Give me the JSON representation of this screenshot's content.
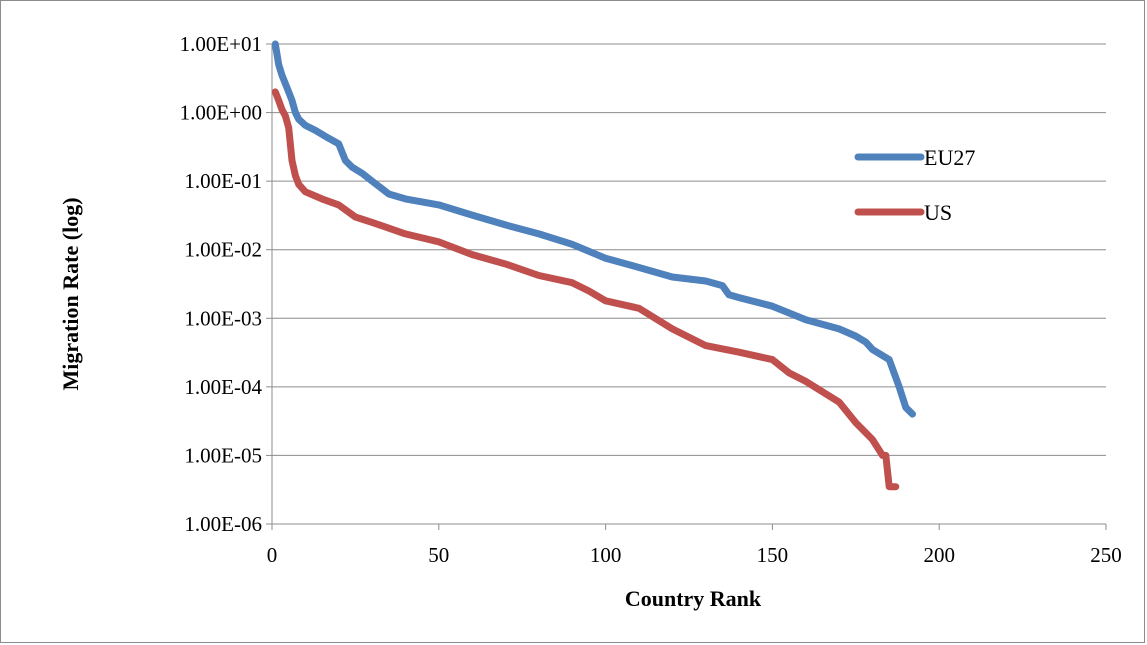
{
  "chart_data": {
    "type": "line",
    "xlabel": "Country Rank",
    "ylabel": "Migration Rate (log)",
    "y_scale": "log",
    "xlim": [
      0,
      250
    ],
    "ylim": [
      1e-06,
      10
    ],
    "x_tick_labels": [
      "0",
      "50",
      "100",
      "150",
      "200",
      "250"
    ],
    "y_tick_labels": [
      "1.00E-06",
      "1.00E-05",
      "1.00E-04",
      "1.00E-03",
      "1.00E-02",
      "1.00E-01",
      "1.00E+00",
      "1.00E+01"
    ],
    "grid": "horizontal",
    "legend_position": "right",
    "series": [
      {
        "name": "EU27",
        "color": "#4f81bd",
        "x": [
          1,
          2,
          3,
          5,
          6,
          7,
          8,
          10,
          13,
          16,
          20,
          22,
          24,
          27,
          30,
          35,
          40,
          50,
          60,
          70,
          80,
          90,
          100,
          110,
          120,
          130,
          135,
          137,
          140,
          150,
          160,
          170,
          175,
          178,
          180,
          185,
          188,
          190,
          192
        ],
        "y": [
          10,
          5,
          3.5,
          2,
          1.5,
          1.0,
          0.8,
          0.65,
          0.55,
          0.45,
          0.35,
          0.2,
          0.16,
          0.13,
          0.1,
          0.065,
          0.055,
          0.045,
          0.032,
          0.023,
          0.017,
          0.012,
          0.0075,
          0.0055,
          0.004,
          0.0035,
          0.003,
          0.0022,
          0.002,
          0.0015,
          0.00095,
          0.0007,
          0.00055,
          0.00045,
          0.00035,
          0.00025,
          0.0001,
          5e-05,
          4e-05
        ]
      },
      {
        "name": "US",
        "color": "#c0504d",
        "x": [
          1,
          2,
          3,
          4,
          5,
          6,
          7,
          8,
          10,
          15,
          20,
          25,
          30,
          40,
          50,
          60,
          70,
          80,
          90,
          95,
          100,
          110,
          120,
          130,
          140,
          150,
          155,
          160,
          170,
          175,
          180,
          183,
          184,
          185,
          186,
          187
        ],
        "y": [
          2,
          1.5,
          1.1,
          0.9,
          0.6,
          0.2,
          0.12,
          0.09,
          0.07,
          0.055,
          0.045,
          0.03,
          0.025,
          0.017,
          0.013,
          0.0085,
          0.0062,
          0.0042,
          0.0033,
          0.0025,
          0.0018,
          0.0014,
          0.0007,
          0.0004,
          0.00032,
          0.00025,
          0.00016,
          0.00012,
          6e-05,
          3e-05,
          1.7e-05,
          1e-05,
          1e-05,
          3.5e-06,
          3.5e-06,
          3.5e-06
        ]
      }
    ]
  }
}
